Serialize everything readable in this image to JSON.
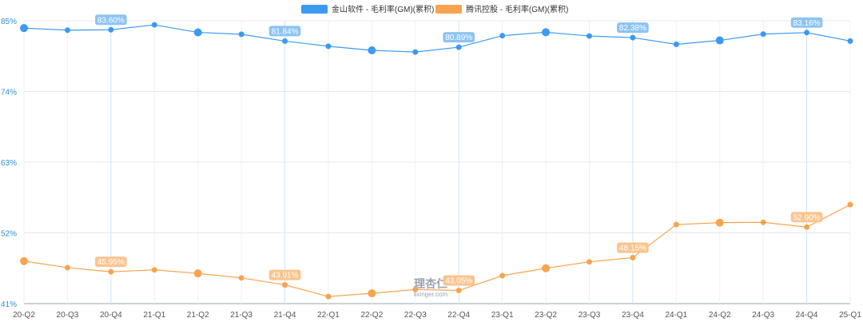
{
  "chart_data": {
    "type": "line",
    "categories": [
      "20-Q2",
      "20-Q3",
      "20-Q4",
      "21-Q1",
      "21-Q2",
      "21-Q3",
      "21-Q4",
      "22-Q1",
      "22-Q2",
      "22-Q3",
      "22-Q4",
      "23-Q1",
      "23-Q2",
      "23-Q3",
      "23-Q4",
      "24-Q1",
      "24-Q2",
      "24-Q3",
      "24-Q4",
      "25-Q1"
    ],
    "y_ticks": [
      "85%",
      "74%",
      "63%",
      "52%",
      "41%"
    ],
    "ylim": [
      41,
      85
    ],
    "series": [
      {
        "name": "金山软件 - 毛利率(GM)(累积)",
        "color": "#3c9af0",
        "label_color": "#8dc3f2",
        "values": [
          83.86,
          83.54,
          83.6,
          84.37,
          83.19,
          82.9,
          81.84,
          81.04,
          80.4,
          80.14,
          80.89,
          82.68,
          83.22,
          82.63,
          82.38,
          81.33,
          81.95,
          82.93,
          83.16,
          81.85
        ],
        "labels": [
          "",
          "",
          "83.60%",
          "",
          "",
          "",
          "81.84%",
          "",
          "",
          "",
          "80.89%",
          "",
          "",
          "",
          "82.38%",
          "",
          "",
          "",
          "83.16%",
          ""
        ],
        "large_points": [
          0,
          4,
          8,
          12,
          16
        ]
      },
      {
        "name": "腾讯控股 - 毛利率(GM)(累积)",
        "color": "#f7a44f",
        "label_color": "#f9c48f",
        "values": [
          47.62,
          46.6,
          45.95,
          46.25,
          45.7,
          45.0,
          43.91,
          42.1,
          42.6,
          43.2,
          43.05,
          45.35,
          46.5,
          47.5,
          48.15,
          53.3,
          53.6,
          53.65,
          52.9,
          56.4
        ],
        "labels": [
          "",
          "",
          "45.95%",
          "",
          "",
          "",
          "43.91%",
          "",
          "",
          "",
          "43.05%",
          "",
          "",
          "",
          "48.15%",
          "",
          "",
          "",
          "52.90%",
          ""
        ],
        "large_points": [
          0,
          4,
          8,
          12,
          16
        ]
      }
    ],
    "grid": true,
    "legend_position": "top-center"
  },
  "watermark": {
    "logo_text": "理杏仁",
    "url_text": "lixinger.com"
  }
}
